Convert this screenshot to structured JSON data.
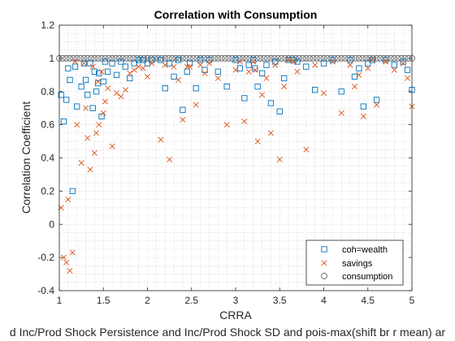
{
  "chart_data": {
    "type": "scatter",
    "title": "Correlation with Consumption",
    "xlabel": "CRRA",
    "ylabel": "Correlation Coefficient",
    "bottom_caption": "d Inc/Prod Shock Persistence and Inc/Prod Shock SD and pois-max(shift br r mean) ar",
    "xlim": [
      1,
      5
    ],
    "ylim": [
      -0.4,
      1.2
    ],
    "xticks": [
      "1",
      "1.5",
      "2",
      "2.5",
      "3",
      "3.5",
      "4",
      "4.5",
      "5"
    ],
    "yticks": [
      "-0.4",
      "-0.2",
      "0",
      "0.2",
      "0.4",
      "0.6",
      "0.8",
      "1",
      "1.2"
    ],
    "grid": "minor dotted",
    "legend_position": "bottom-right",
    "series": [
      {
        "name": "coh=wealth",
        "marker": "square",
        "color": "#0072BD",
        "x": [
          1.02,
          1.05,
          1.08,
          1.12,
          1.15,
          1.2,
          1.25,
          1.3,
          1.32,
          1.35,
          1.38,
          1.4,
          1.42,
          1.45,
          1.48,
          1.5,
          1.52,
          1.55,
          1.6,
          1.65,
          1.7,
          1.75,
          1.8,
          1.85,
          1.9,
          1.95,
          2.0,
          2.05,
          2.15,
          2.2,
          2.25,
          2.3,
          2.35,
          2.4,
          2.45,
          2.55,
          2.6,
          2.65,
          2.7,
          2.8,
          2.9,
          3.0,
          3.05,
          3.1,
          3.15,
          3.2,
          3.25,
          3.3,
          3.35,
          3.4,
          3.45,
          3.5,
          3.55,
          3.6,
          3.7,
          3.8,
          3.9,
          4.0,
          4.1,
          4.2,
          4.3,
          4.35,
          4.4,
          4.45,
          4.5,
          4.55,
          4.6,
          4.7,
          4.8,
          4.9,
          4.95,
          5.0,
          1.1,
          1.18,
          1.28,
          1.44,
          2.48,
          3.22,
          3.66
        ],
        "y": [
          0.78,
          0.62,
          0.75,
          0.87,
          0.2,
          0.71,
          0.83,
          0.87,
          0.78,
          0.97,
          0.7,
          0.92,
          0.8,
          0.91,
          0.65,
          0.86,
          0.98,
          0.92,
          0.97,
          0.9,
          0.98,
          0.95,
          0.88,
          0.97,
          0.99,
          0.99,
          0.97,
          0.99,
          0.99,
          0.82,
          0.97,
          0.89,
          0.99,
          0.69,
          0.92,
          0.82,
          0.99,
          0.93,
          0.99,
          0.92,
          0.83,
          0.99,
          0.94,
          0.76,
          0.96,
          0.99,
          0.83,
          0.91,
          0.96,
          0.73,
          0.98,
          0.68,
          0.88,
          0.99,
          0.98,
          0.95,
          0.81,
          0.97,
          0.99,
          0.8,
          0.99,
          0.89,
          0.94,
          0.71,
          0.97,
          0.99,
          0.75,
          0.99,
          0.96,
          0.98,
          0.93,
          0.81,
          0.94,
          0.95,
          0.97,
          0.85,
          0.97,
          0.94,
          0.99
        ]
      },
      {
        "name": "savings",
        "marker": "x",
        "color": "#D95319",
        "x": [
          1.02,
          1.05,
          1.08,
          1.12,
          1.15,
          1.2,
          1.25,
          1.3,
          1.32,
          1.35,
          1.38,
          1.4,
          1.42,
          1.45,
          1.48,
          1.5,
          1.52,
          1.55,
          1.6,
          1.65,
          1.7,
          1.75,
          1.8,
          1.85,
          1.9,
          1.95,
          2.0,
          2.05,
          2.15,
          2.2,
          2.25,
          2.3,
          2.35,
          2.4,
          2.45,
          2.55,
          2.6,
          2.65,
          2.7,
          2.8,
          2.9,
          3.0,
          3.05,
          3.1,
          3.15,
          3.2,
          3.25,
          3.3,
          3.35,
          3.4,
          3.45,
          3.5,
          3.55,
          3.6,
          3.7,
          3.8,
          3.9,
          4.0,
          4.1,
          4.2,
          4.3,
          4.35,
          4.4,
          4.45,
          4.5,
          4.55,
          4.6,
          4.7,
          4.8,
          4.9,
          4.95,
          5.0,
          1.1,
          1.18,
          1.28,
          1.44,
          2.48,
          3.22,
          3.66
        ],
        "y": [
          0.1,
          -0.2,
          -0.23,
          -0.28,
          -0.17,
          0.6,
          0.37,
          0.7,
          0.52,
          0.33,
          0.95,
          0.43,
          0.55,
          0.6,
          0.92,
          0.67,
          0.74,
          0.82,
          0.47,
          0.79,
          0.77,
          0.81,
          0.91,
          0.93,
          0.95,
          0.94,
          0.89,
          0.97,
          0.51,
          0.96,
          0.39,
          0.95,
          0.87,
          0.63,
          0.95,
          0.72,
          0.96,
          0.91,
          0.97,
          0.88,
          0.6,
          0.93,
          0.98,
          0.62,
          0.92,
          0.98,
          0.5,
          0.78,
          0.88,
          0.55,
          0.96,
          0.39,
          0.83,
          0.99,
          0.92,
          0.45,
          0.96,
          0.79,
          0.98,
          0.67,
          0.96,
          0.83,
          0.9,
          0.65,
          0.94,
          0.99,
          0.72,
          0.98,
          0.93,
          0.97,
          0.88,
          0.71,
          0.15,
          0.98,
          0.97,
          0.86,
          0.95,
          0.93,
          0.98
        ]
      },
      {
        "name": "consumption",
        "marker": "circle",
        "color": "#666666",
        "x": [
          1.0,
          1.04,
          1.08,
          1.12,
          1.16,
          1.2,
          1.24,
          1.28,
          1.32,
          1.36,
          1.4,
          1.44,
          1.48,
          1.52,
          1.56,
          1.6,
          1.64,
          1.68,
          1.72,
          1.76,
          1.8,
          1.84,
          1.88,
          1.92,
          1.96,
          2.0,
          2.04,
          2.08,
          2.12,
          2.16,
          2.2,
          2.24,
          2.28,
          2.32,
          2.36,
          2.4,
          2.44,
          2.48,
          2.52,
          2.56,
          2.6,
          2.64,
          2.68,
          2.72,
          2.76,
          2.8,
          2.84,
          2.88,
          2.92,
          2.96,
          3.0,
          3.04,
          3.08,
          3.12,
          3.16,
          3.2,
          3.24,
          3.28,
          3.32,
          3.36,
          3.4,
          3.44,
          3.48,
          3.52,
          3.56,
          3.6,
          3.64,
          3.68,
          3.72,
          3.76,
          3.8,
          3.84,
          3.88,
          3.92,
          3.96,
          4.0,
          4.04,
          4.08,
          4.12,
          4.16,
          4.2,
          4.24,
          4.28,
          4.32,
          4.36,
          4.4,
          4.44,
          4.48,
          4.52,
          4.56,
          4.6,
          4.64,
          4.68,
          4.72,
          4.76,
          4.8,
          4.84,
          4.88,
          4.92,
          4.96,
          5.0
        ],
        "y": [
          1,
          1,
          1,
          1,
          1,
          1,
          1,
          1,
          1,
          1,
          1,
          1,
          1,
          1,
          1,
          1,
          1,
          1,
          1,
          1,
          1,
          1,
          1,
          1,
          1,
          1,
          1,
          1,
          1,
          1,
          1,
          1,
          1,
          1,
          1,
          1,
          1,
          1,
          1,
          1,
          1,
          1,
          1,
          1,
          1,
          1,
          1,
          1,
          1,
          1,
          1,
          1,
          1,
          1,
          1,
          1,
          1,
          1,
          1,
          1,
          1,
          1,
          1,
          1,
          1,
          1,
          1,
          1,
          1,
          1,
          1,
          1,
          1,
          1,
          1,
          1,
          1,
          1,
          1,
          1,
          1,
          1,
          1,
          1,
          1,
          1,
          1,
          1,
          1,
          1,
          1,
          1,
          1,
          1,
          1,
          1,
          1,
          1,
          1,
          1,
          1
        ]
      }
    ]
  }
}
